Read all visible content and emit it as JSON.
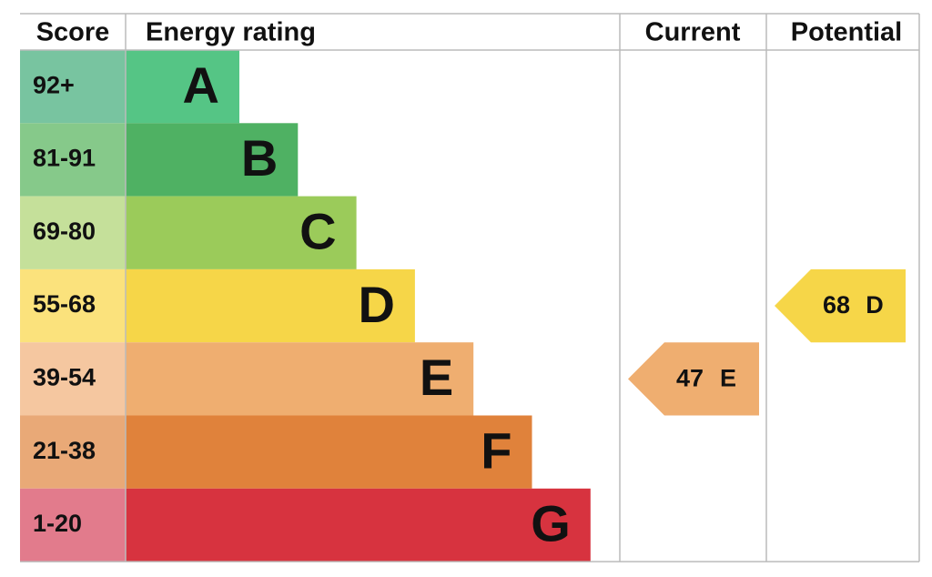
{
  "headers": {
    "score": "Score",
    "rating": "Energy rating",
    "current": "Current",
    "potential": "Potential"
  },
  "bands": [
    {
      "score": "92+",
      "letter": "A",
      "score_color": "#78c4a0",
      "color": "#55c585"
    },
    {
      "score": "81-91",
      "letter": "B",
      "score_color": "#86c98a",
      "color": "#4fb163"
    },
    {
      "score": "69-80",
      "letter": "C",
      "score_color": "#c5e09a",
      "color": "#9bcb5a"
    },
    {
      "score": "55-68",
      "letter": "D",
      "score_color": "#fbe27c",
      "color": "#f6d648"
    },
    {
      "score": "39-54",
      "letter": "E",
      "score_color": "#f5c7a0",
      "color": "#efae70"
    },
    {
      "score": "21-38",
      "letter": "F",
      "score_color": "#e9a977",
      "color": "#e0823b"
    },
    {
      "score": "1-20",
      "letter": "G",
      "score_color": "#e27b8c",
      "color": "#d7333f"
    }
  ],
  "current": {
    "value": 47,
    "letter": "E"
  },
  "potential": {
    "value": 68,
    "letter": "D"
  }
}
